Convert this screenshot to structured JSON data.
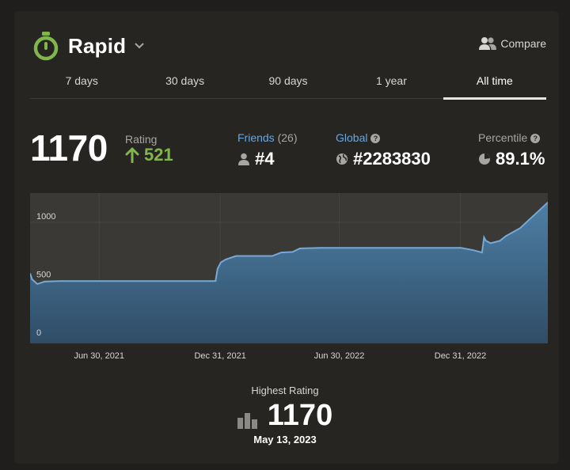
{
  "header": {
    "title": "Rapid",
    "icon": "stopwatch-icon",
    "compare_label": "Compare"
  },
  "tabs": [
    {
      "label": "7 days",
      "active": false
    },
    {
      "label": "30 days",
      "active": false
    },
    {
      "label": "90 days",
      "active": false
    },
    {
      "label": "1 year",
      "active": false
    },
    {
      "label": "All time",
      "active": true
    }
  ],
  "stats": {
    "rating": "1170",
    "rating_label": "Rating",
    "rating_change": "521",
    "friends_label": "Friends",
    "friends_count": "(26)",
    "friends_rank": "#4",
    "global_label": "Global",
    "global_rank": "#2283830",
    "percentile_label": "Percentile",
    "percentile_value": "89.1%"
  },
  "colors": {
    "accent_green": "#81b64c",
    "accent_blue": "#67a7e0",
    "line": "#76a9d6",
    "area_top": "#4e7fa6",
    "area_bottom": "#2f4d66"
  },
  "chart_data": {
    "type": "area",
    "y_ticks": [
      "1000",
      "500",
      "0"
    ],
    "y_tick_values": [
      1000,
      500,
      0
    ],
    "ylim": [
      -40,
      1250
    ],
    "x_ticks": [
      "Jun 30, 2021",
      "Dec 31, 2021",
      "Jun 30, 2022",
      "Dec 31, 2022"
    ],
    "x_tick_dates": [
      "2021-06-30",
      "2021-12-31",
      "2022-06-30",
      "2022-12-31"
    ],
    "xlim": [
      "2021-03-17",
      "2023-05-13"
    ],
    "grid": true,
    "points": [
      [
        "2021-03-17",
        560
      ],
      [
        "2021-03-20",
        510
      ],
      [
        "2021-03-28",
        470
      ],
      [
        "2021-04-08",
        490
      ],
      [
        "2021-05-01",
        495
      ],
      [
        "2021-07-01",
        495
      ],
      [
        "2021-09-01",
        495
      ],
      [
        "2021-11-01",
        495
      ],
      [
        "2021-12-24",
        495
      ],
      [
        "2021-12-27",
        600
      ],
      [
        "2022-01-01",
        655
      ],
      [
        "2022-01-08",
        680
      ],
      [
        "2022-01-24",
        710
      ],
      [
        "2022-02-20",
        710
      ],
      [
        "2022-03-20",
        710
      ],
      [
        "2022-04-03",
        740
      ],
      [
        "2022-04-20",
        745
      ],
      [
        "2022-05-01",
        775
      ],
      [
        "2022-06-01",
        780
      ],
      [
        "2022-08-01",
        780
      ],
      [
        "2022-10-01",
        780
      ],
      [
        "2022-12-01",
        780
      ],
      [
        "2023-01-01",
        780
      ],
      [
        "2023-01-20",
        760
      ],
      [
        "2023-02-02",
        740
      ],
      [
        "2023-02-05",
        870
      ],
      [
        "2023-02-08",
        840
      ],
      [
        "2023-02-15",
        820
      ],
      [
        "2023-03-01",
        840
      ],
      [
        "2023-03-10",
        880
      ],
      [
        "2023-04-01",
        950
      ],
      [
        "2023-05-13",
        1170
      ]
    ]
  },
  "highest": {
    "label": "Highest Rating",
    "value": "1170",
    "date": "May 13, 2023"
  }
}
